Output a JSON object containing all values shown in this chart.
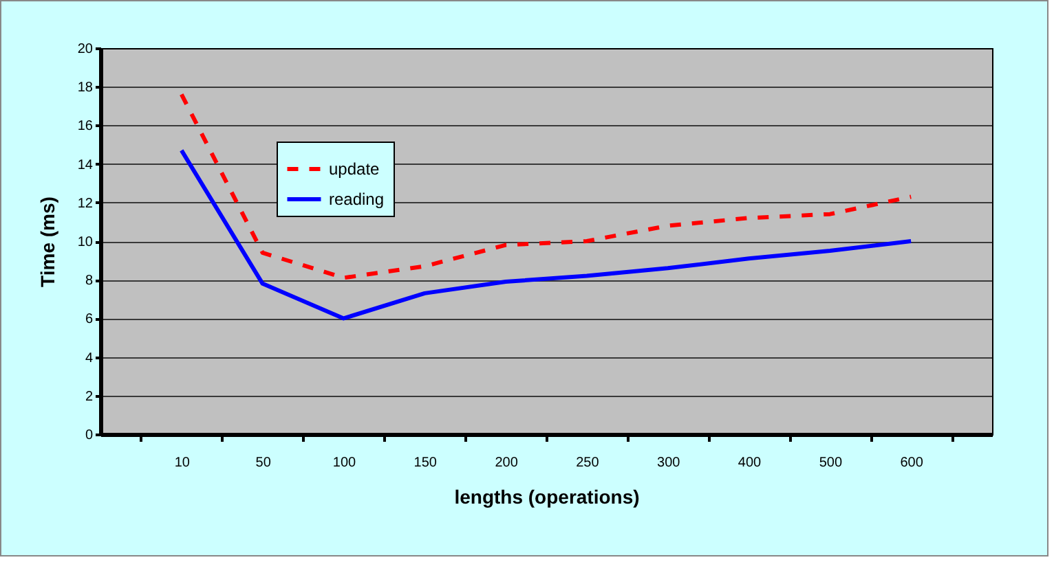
{
  "chart_data": {
    "type": "line",
    "xlabel": "lengths (operations)",
    "ylabel": "Time (ms)",
    "categories": [
      "10",
      "50",
      "100",
      "150",
      "200",
      "250",
      "300",
      "400",
      "500",
      "600"
    ],
    "series": [
      {
        "name": "update",
        "color": "#ff0000",
        "line_style": "dashed",
        "values": [
          17.6,
          9.4,
          8.1,
          8.7,
          9.8,
          10.0,
          10.8,
          11.2,
          11.4,
          12.3
        ]
      },
      {
        "name": "reading",
        "color": "#0000ff",
        "line_style": "solid",
        "values": [
          14.7,
          7.8,
          6.0,
          7.3,
          7.9,
          8.2,
          8.6,
          9.1,
          9.5,
          10.0
        ]
      }
    ],
    "ylim": [
      0,
      20
    ],
    "yticks": [
      0,
      2,
      4,
      6,
      8,
      10,
      12,
      14,
      16,
      18,
      20
    ],
    "grid": "y",
    "legend": "top left"
  }
}
